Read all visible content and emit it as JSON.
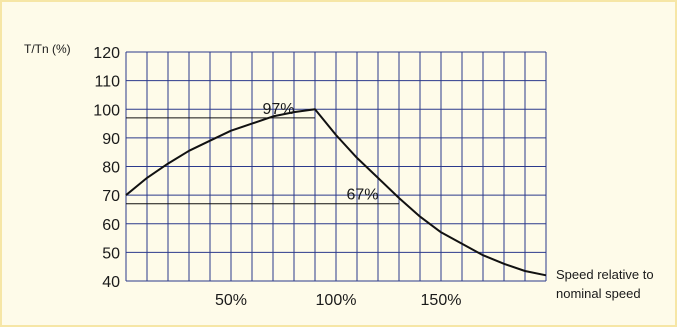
{
  "chart_data": {
    "type": "line",
    "ylabel": "T/Tn (%)",
    "xlabel_line1": "Speed relative to",
    "xlabel_line2": "nominal speed",
    "ylim": [
      40,
      120
    ],
    "xlim": [
      0,
      200
    ],
    "y_ticks": [
      "120",
      "110",
      "100",
      "90",
      "80",
      "70",
      "60",
      "50",
      "40"
    ],
    "x_tick_values": [
      50,
      100,
      150
    ],
    "x_tick_labels": [
      "50%",
      "100%",
      "150%"
    ],
    "grid": true,
    "colors": {
      "grid": "#2b3a8c",
      "line": "#111111",
      "background": "#fefbe9",
      "border": "#f6e6a6"
    },
    "series": [
      {
        "x": [
          0,
          10,
          20,
          30,
          40,
          50,
          60,
          70,
          80,
          90,
          100,
          110,
          120,
          130,
          140,
          150,
          160,
          170,
          180,
          190,
          200
        ],
        "y": [
          70,
          76,
          81,
          85.5,
          89,
          92.5,
          95,
          97.5,
          99,
          100,
          91,
          83,
          76,
          69,
          62.5,
          57,
          53,
          49,
          46,
          43.5,
          42
        ]
      }
    ],
    "annotations": [
      {
        "text": "97%",
        "x_end": 90,
        "y": 97
      },
      {
        "text": "67%",
        "x_end": 130,
        "y": 67
      }
    ]
  }
}
